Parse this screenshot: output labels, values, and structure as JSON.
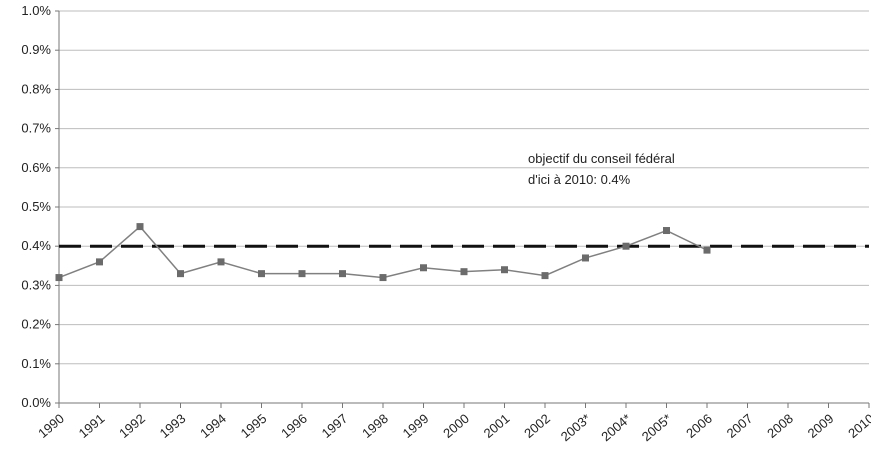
{
  "chart_data": {
    "type": "line",
    "categories": [
      "1990",
      "1991",
      "1992",
      "1993",
      "1994",
      "1995",
      "1996",
      "1997",
      "1998",
      "1999",
      "2000",
      "2001",
      "2002",
      "2003*",
      "2004*",
      "2005*",
      "2006",
      "2007",
      "2008",
      "2009",
      "2010"
    ],
    "y_ticks": [
      "0.0%",
      "0.1%",
      "0.2%",
      "0.3%",
      "0.4%",
      "0.5%",
      "0.6%",
      "0.7%",
      "0.8%",
      "0.9%",
      "1.0%"
    ],
    "ylim": [
      0,
      1.0
    ],
    "grid": true,
    "series": [
      {
        "values": [
          0.32,
          0.36,
          0.45,
          0.33,
          0.36,
          0.33,
          0.33,
          0.33,
          0.32,
          0.345,
          0.335,
          0.34,
          0.325,
          0.37,
          0.4,
          0.44,
          0.39,
          null,
          null,
          null,
          null
        ],
        "color": "#808080",
        "marker": "square"
      }
    ],
    "target": {
      "value": 0.4,
      "style": "dashed",
      "color": "#111111"
    },
    "annotation": {
      "line1": "objectif du conseil fédéral",
      "line2": "d'ici à 2010: 0.4%"
    }
  }
}
